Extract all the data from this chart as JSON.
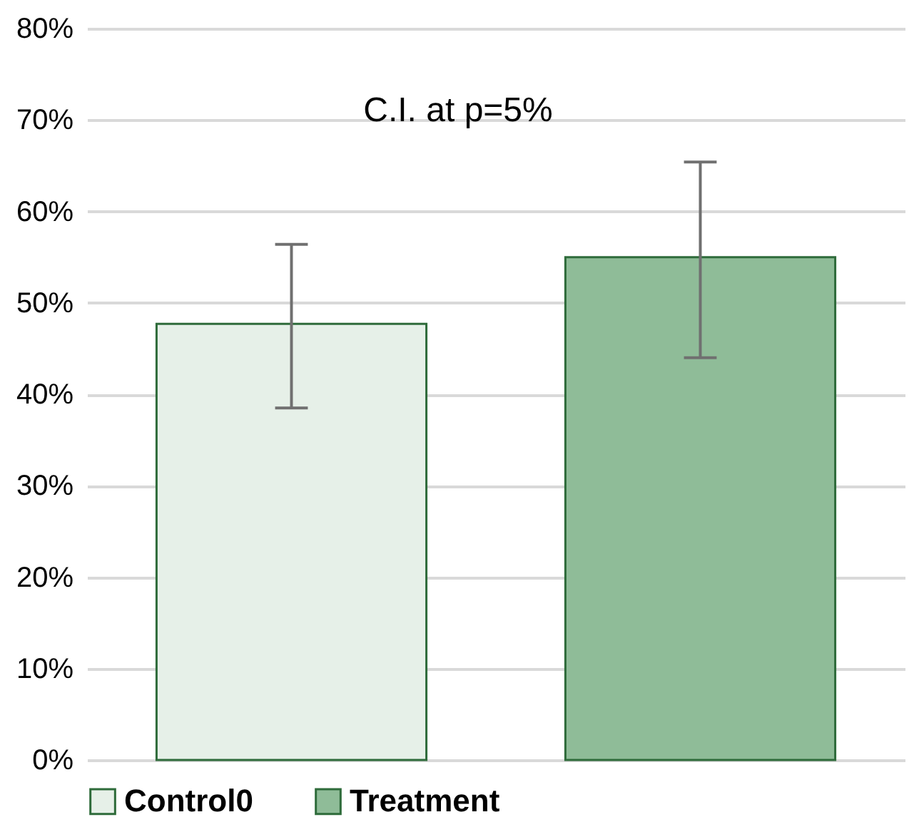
{
  "chart_data": {
    "type": "bar",
    "categories": [
      null,
      null
    ],
    "series": [
      {
        "name": "Control0",
        "color": "#e6f0e8",
        "values": [
          47.7,
          null
        ],
        "errors": [
          [
            38.5,
            56.4
          ],
          null
        ]
      },
      {
        "name": "Treatment",
        "color": "#8fbc98",
        "values": [
          null,
          55.0
        ],
        "errors": [
          null,
          [
            44.0,
            65.4
          ]
        ]
      }
    ],
    "ylim": [
      0,
      80
    ],
    "yticks": [
      {
        "value": 0,
        "label": "0%"
      },
      {
        "value": 10,
        "label": "10%"
      },
      {
        "value": 20,
        "label": "20%"
      },
      {
        "value": 30,
        "label": "30%"
      },
      {
        "value": 40,
        "label": "40%"
      },
      {
        "value": 50,
        "label": "50%"
      },
      {
        "value": 60,
        "label": "60%"
      },
      {
        "value": 70,
        "label": "70%"
      },
      {
        "value": 80,
        "label": "80%"
      }
    ],
    "grid": "y",
    "legend": "bottom",
    "annotations": [
      "C.I. at p=5%"
    ]
  }
}
